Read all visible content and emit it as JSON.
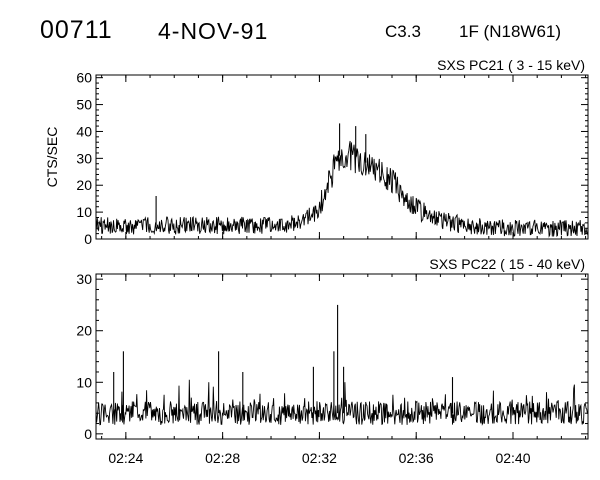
{
  "header": {
    "event_id": "00711",
    "date": "4-NOV-91",
    "goes_class": "C3.3",
    "optical_class_location": "1F (N18W61)"
  },
  "chart_data": [
    {
      "type": "line",
      "title": "SXS PC21  ( 3 - 15 keV)",
      "ylabel": "CTS/SEC",
      "xlabel": "",
      "xlim": [
        "02:22:46",
        "02:43:06"
      ],
      "ylim": [
        0,
        61
      ],
      "yticks": [
        0,
        10,
        20,
        30,
        40,
        50,
        60
      ],
      "xticks": [
        "02:24",
        "02:28",
        "02:32",
        "02:36",
        "02:40"
      ],
      "show_xtick_labels": false,
      "grid": false,
      "series": [
        {
          "x": [
            "02:22:46",
            "02:24:00",
            "02:26:00",
            "02:28:00",
            "02:29:30",
            "02:30:30",
            "02:31:15",
            "02:31:45",
            "02:32:10",
            "02:32:30",
            "02:32:50",
            "02:33:10",
            "02:33:30",
            "02:33:50",
            "02:34:15",
            "02:34:45",
            "02:35:15",
            "02:35:45",
            "02:36:15",
            "02:37:00",
            "02:38:00",
            "02:40:00",
            "02:43:06"
          ],
          "values": [
            5,
            5,
            5,
            5,
            5,
            5,
            6,
            9,
            15,
            24,
            31,
            31,
            30,
            29,
            26,
            23,
            19,
            14,
            10,
            7,
            5,
            4,
            4
          ],
          "spikes": [
            {
              "x": "02:25:15",
              "value": 16
            },
            {
              "x": "02:32:50",
              "value": 43
            },
            {
              "x": "02:33:30",
              "value": 42
            },
            {
              "x": "02:33:55",
              "value": 39
            }
          ]
        }
      ]
    },
    {
      "type": "line",
      "title": "SXS PC22  ( 15 - 40 keV)",
      "ylabel": "",
      "xlabel": "",
      "xlim": [
        "02:22:46",
        "02:43:06"
      ],
      "ylim": [
        -1,
        31
      ],
      "yticks": [
        0,
        10,
        20,
        30
      ],
      "xticks": [
        "02:24",
        "02:28",
        "02:32",
        "02:36",
        "02:40"
      ],
      "show_xtick_labels": true,
      "grid": false,
      "series": [
        {
          "x": [
            "02:22:46",
            "02:43:06"
          ],
          "values": [
            4,
            4
          ],
          "spikes": [
            {
              "x": "02:23:30",
              "value": 12
            },
            {
              "x": "02:23:54",
              "value": 16
            },
            {
              "x": "02:27:50",
              "value": 16
            },
            {
              "x": "02:28:50",
              "value": 12
            },
            {
              "x": "02:31:45",
              "value": 13
            },
            {
              "x": "02:32:36",
              "value": 16
            },
            {
              "x": "02:32:45",
              "value": 25
            },
            {
              "x": "02:33:00",
              "value": 13
            },
            {
              "x": "02:37:30",
              "value": 11
            }
          ]
        }
      ]
    }
  ]
}
